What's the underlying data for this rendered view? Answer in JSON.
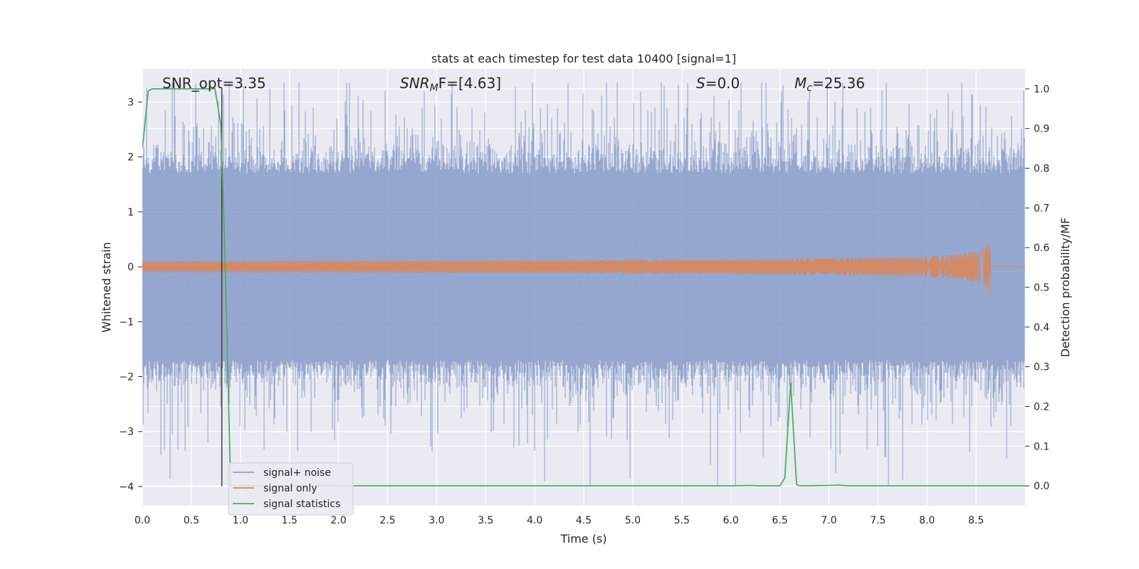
{
  "chart_data": {
    "type": "line",
    "title": "stats at each timestep for test data 10400 [signal=1]",
    "xlabel": "Time (s)",
    "ylabel": "Whitened strain",
    "ylabel_right": "Detection probability/MF",
    "xlim": [
      0.0,
      9.0
    ],
    "ylim": [
      -4.35,
      3.6
    ],
    "ylim_right": [
      -0.05,
      1.05
    ],
    "x_ticks": [
      "0.0",
      "0.5",
      "1.0",
      "1.5",
      "2.0",
      "2.5",
      "3.0",
      "3.5",
      "4.0",
      "4.5",
      "5.0",
      "5.5",
      "6.0",
      "6.5",
      "7.0",
      "7.5",
      "8.0",
      "8.5"
    ],
    "y_ticks": [
      "3",
      "2",
      "1",
      "0",
      "−1",
      "−2",
      "−3",
      "−4"
    ],
    "y_ticks_right": [
      "1.0",
      "0.9",
      "0.8",
      "0.7",
      "0.6",
      "0.5",
      "0.4",
      "0.3",
      "0.2",
      "0.1",
      "0.0"
    ],
    "grid": true,
    "legend_position": "lower-left",
    "colors": {
      "noise": "#8da0cb",
      "signal": "#dd8452",
      "stats": "#55a868",
      "marker": "#333333",
      "background": "#eaeaf2"
    },
    "annotations": {
      "snr_opt": "SNR_opt=3.35",
      "snr_mf_var": "SNR",
      "snr_mf_sub": "M",
      "snr_mf_rest": "F=[4.63]",
      "s_var": "S",
      "s_rest": "=0.0",
      "mc_var": "M",
      "mc_sub": "c",
      "mc_rest": "=25.36"
    },
    "marker_time": 0.81,
    "series": [
      {
        "name": "signal+ noise",
        "axis": "left",
        "description_amplitude": 1.7
      },
      {
        "name": "signal only",
        "axis": "left",
        "chirp_peak_time": 8.65,
        "chirp_peak_amplitude": 0.7
      },
      {
        "name": "signal statistics",
        "axis": "right",
        "x": [
          0.0,
          0.06,
          0.1,
          0.2,
          0.3,
          0.4,
          0.5,
          0.6,
          0.7,
          0.74,
          0.8,
          0.84,
          0.88,
          0.9,
          1.0,
          2.0,
          3.0,
          4.0,
          5.0,
          6.0,
          6.2,
          6.3,
          6.4,
          6.5,
          6.55,
          6.61,
          6.67,
          6.7,
          7.0,
          7.1,
          7.2,
          7.5,
          8.0,
          8.5,
          9.0
        ],
        "y": [
          0.85,
          0.995,
          1.0,
          1.0,
          1.0,
          1.0,
          1.0,
          1.0,
          1.0,
          1.0,
          0.91,
          0.6,
          0.2,
          0.0,
          0.0,
          0.0,
          0.0,
          0.0,
          0.0,
          0.0,
          0.001,
          0.0,
          0.0,
          0.0,
          0.02,
          0.26,
          0.003,
          0.0,
          0.001,
          0.002,
          0.0,
          0.0,
          0.0,
          0.0,
          0.0
        ]
      }
    ]
  }
}
